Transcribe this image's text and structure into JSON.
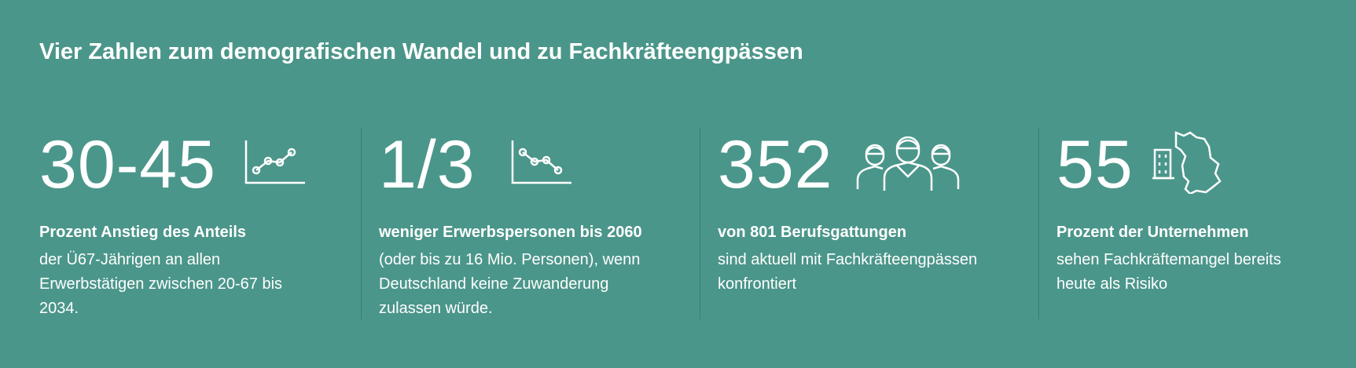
{
  "title": "Vier Zahlen zum demografischen Wandel und zu Fachkräfteengpässen",
  "items": [
    {
      "number": "30-45",
      "headline": "Prozent Anstieg des Anteils",
      "lines": [
        "der Ü67-Jährigen an allen",
        "Erwerbstätigen zwischen 20-67 bis",
        "2034."
      ]
    },
    {
      "number": "1/3",
      "headline": "weniger Erwerbspersonen bis 2060",
      "lines": [
        "(oder bis zu 16 Mio. Personen), wenn",
        "Deutschland keine Zuwanderung",
        "zulassen würde."
      ]
    },
    {
      "number": "352",
      "headline": "von 801 Berufsgattungen",
      "lines": [
        "sind aktuell mit Fachkräfteengpässen",
        "konfrontiert"
      ]
    },
    {
      "number": "55",
      "headline": "Prozent der Unternehmen",
      "lines": [
        "sehen Fachkräftemangel bereits",
        "heute als Risiko"
      ]
    }
  ]
}
